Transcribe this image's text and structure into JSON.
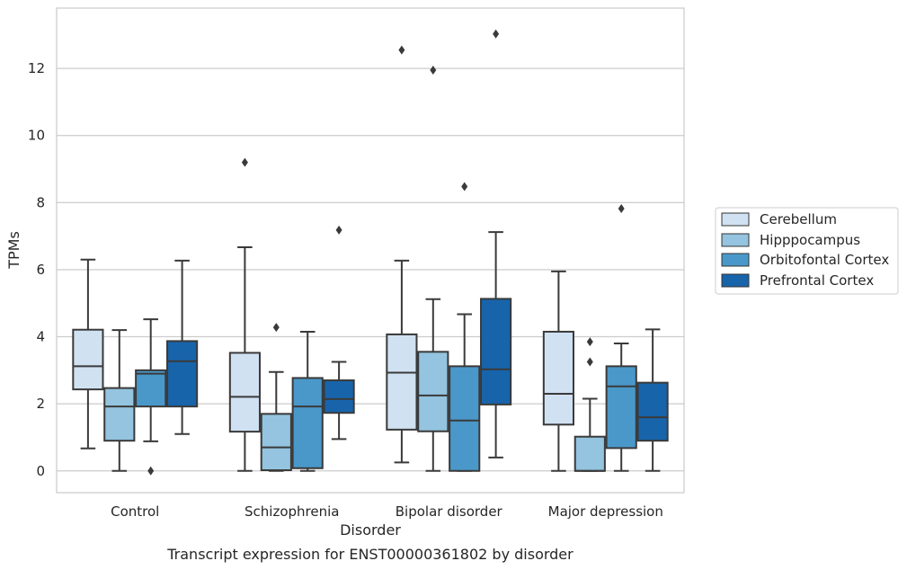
{
  "chart_data": {
    "type": "box",
    "caption": "Transcript expression for ENST00000361802 by disorder",
    "xlabel": "Disorder",
    "ylabel": "TPMs",
    "ylim": [
      -0.65,
      13.8
    ],
    "yticks": [
      0,
      2,
      4,
      6,
      8,
      10,
      12
    ],
    "grid": true,
    "legend_position": "right",
    "categories": [
      "Control",
      "Schizophrenia",
      "Bipolar disorder",
      "Major depression"
    ],
    "series": [
      {
        "name": "Cerebellum",
        "color": "#d0e1f2",
        "boxes": [
          {
            "whislo": 0.67,
            "q1": 2.43,
            "med": 3.12,
            "q3": 4.21,
            "whishi": 6.3,
            "fliers": []
          },
          {
            "whislo": 0.0,
            "q1": 1.17,
            "med": 2.21,
            "q3": 3.52,
            "whishi": 6.67,
            "fliers": [
              9.2
            ]
          },
          {
            "whislo": 0.25,
            "q1": 1.23,
            "med": 2.93,
            "q3": 4.07,
            "whishi": 6.27,
            "fliers": [
              12.55
            ]
          },
          {
            "whislo": 0.0,
            "q1": 1.38,
            "med": 2.3,
            "q3": 4.15,
            "whishi": 5.95,
            "fliers": []
          }
        ]
      },
      {
        "name": "Hipppocampus",
        "color": "#94c4df",
        "boxes": [
          {
            "whislo": 0.0,
            "q1": 0.9,
            "med": 1.92,
            "q3": 2.47,
            "whishi": 4.2,
            "fliers": []
          },
          {
            "whislo": 0.0,
            "q1": 0.02,
            "med": 0.7,
            "q3": 1.7,
            "whishi": 2.95,
            "fliers": [
              4.28
            ]
          },
          {
            "whislo": 0.0,
            "q1": 1.18,
            "med": 2.25,
            "q3": 3.55,
            "whishi": 5.12,
            "fliers": [
              11.95
            ]
          },
          {
            "whislo": 0.0,
            "q1": 0.0,
            "med": 0.0,
            "q3": 1.02,
            "whishi": 2.15,
            "fliers": [
              3.25,
              3.85
            ]
          }
        ]
      },
      {
        "name": "Orbitofontal Cortex",
        "color": "#4a98c9",
        "boxes": [
          {
            "whislo": 0.88,
            "q1": 1.92,
            "med": 2.9,
            "q3": 3.0,
            "whishi": 4.52,
            "fliers": [
              0.0
            ]
          },
          {
            "whislo": 0.0,
            "q1": 0.08,
            "med": 1.92,
            "q3": 2.77,
            "whishi": 4.15,
            "fliers": []
          },
          {
            "whislo": 0.0,
            "q1": 0.0,
            "med": 1.5,
            "q3": 3.12,
            "whishi": 4.67,
            "fliers": [
              8.48
            ]
          },
          {
            "whislo": 0.0,
            "q1": 0.68,
            "med": 2.52,
            "q3": 3.12,
            "whishi": 3.8,
            "fliers": [
              7.82
            ]
          }
        ]
      },
      {
        "name": "Prefrontal Cortex",
        "color": "#1764ab",
        "boxes": [
          {
            "whislo": 1.1,
            "q1": 1.92,
            "med": 3.27,
            "q3": 3.87,
            "whishi": 6.27,
            "fliers": []
          },
          {
            "whislo": 0.95,
            "q1": 1.73,
            "med": 2.14,
            "q3": 2.7,
            "whishi": 3.25,
            "fliers": [
              7.18
            ]
          },
          {
            "whislo": 0.4,
            "q1": 1.98,
            "med": 3.03,
            "q3": 5.13,
            "whishi": 7.12,
            "fliers": [
              13.03
            ]
          },
          {
            "whislo": 0.0,
            "q1": 0.9,
            "med": 1.6,
            "q3": 2.63,
            "whishi": 4.22,
            "fliers": []
          }
        ]
      }
    ]
  }
}
